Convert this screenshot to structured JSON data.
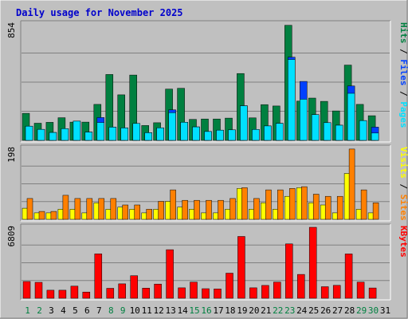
{
  "title": "Daily usage for November 2025",
  "colors": {
    "background": "#c0c0c0",
    "title": "#0000cc",
    "hits": "#008040",
    "files": "#0040ff",
    "pages": "#00e0ff",
    "visits": "#ffff00",
    "sites": "#ff8000",
    "kbytes": "#ff0000",
    "weekend_day": "#008040",
    "weekday": "#000000"
  },
  "chart_data": [
    {
      "type": "bar",
      "name": "hits-files-pages",
      "categories": [
        "1",
        "2",
        "3",
        "4",
        "5",
        "6",
        "7",
        "8",
        "9",
        "10",
        "11",
        "12",
        "13",
        "14",
        "15",
        "16",
        "17",
        "18",
        "19",
        "20",
        "21",
        "22",
        "23",
        "24",
        "25",
        "26",
        "27",
        "28",
        "29",
        "30",
        "31"
      ],
      "ymax_label": "854",
      "ylim": [
        0,
        854
      ],
      "grid": true,
      "series": [
        {
          "name": "Hits",
          "color": "#008040",
          "values": [
            198,
            126,
            132,
            166,
            134,
            134,
            264,
            483,
            334,
            479,
            109,
            129,
            376,
            382,
            154,
            157,
            157,
            163,
            490,
            165,
            262,
            252,
            844,
            288,
            310,
            286,
            216,
            552,
            264,
            181,
            0
          ]
        },
        {
          "name": "Files",
          "color": "#0040ff",
          "values": [
            104,
            81,
            58,
            86,
            141,
            61,
            167,
            97,
            91,
            124,
            56,
            92,
            224,
            133,
            99,
            65,
            75,
            77,
            254,
            80,
            106,
            125,
            610,
            432,
            189,
            130,
            111,
            399,
            145,
            97,
            0
          ]
        },
        {
          "name": "Pages",
          "color": "#00e0ff",
          "values": [
            104,
            81,
            58,
            86,
            141,
            61,
            131,
            97,
            91,
            124,
            56,
            92,
            203,
            133,
            99,
            65,
            75,
            77,
            254,
            80,
            106,
            125,
            593,
            302,
            189,
            130,
            111,
            345,
            145,
            54,
            0
          ]
        }
      ],
      "right_label": [
        "Pages",
        " / ",
        "Files",
        " / ",
        "Hits"
      ]
    },
    {
      "type": "bar",
      "name": "visits-sites",
      "categories": [
        "1",
        "2",
        "3",
        "4",
        "5",
        "6",
        "7",
        "8",
        "9",
        "10",
        "11",
        "12",
        "13",
        "14",
        "15",
        "16",
        "17",
        "18",
        "19",
        "20",
        "21",
        "22",
        "23",
        "24",
        "25",
        "26",
        "27",
        "28",
        "29",
        "30",
        "31"
      ],
      "ymax_label": "198",
      "ylim": [
        0,
        198
      ],
      "grid": true,
      "series": [
        {
          "name": "Visits",
          "color": "#ffff00",
          "values": [
            31,
            18,
            18,
            28,
            28,
            18,
            46,
            28,
            34,
            28,
            18,
            28,
            50,
            34,
            28,
            18,
            18,
            28,
            86,
            28,
            46,
            28,
            64,
            88,
            46,
            40,
            18,
            128,
            28,
            18,
            0
          ]
        },
        {
          "name": "Sites",
          "color": "#ff8000",
          "values": [
            58,
            22,
            22,
            67,
            58,
            58,
            58,
            58,
            40,
            40,
            28,
            50,
            82,
            53,
            53,
            53,
            53,
            58,
            88,
            58,
            82,
            82,
            86,
            91,
            70,
            64,
            64,
            196,
            82,
            46,
            0
          ]
        }
      ],
      "right_label": [
        "Sites",
        " / ",
        "Visits"
      ]
    },
    {
      "type": "bar",
      "name": "kbytes",
      "categories": [
        "1",
        "2",
        "3",
        "4",
        "5",
        "6",
        "7",
        "8",
        "9",
        "10",
        "11",
        "12",
        "13",
        "14",
        "15",
        "16",
        "17",
        "18",
        "19",
        "20",
        "21",
        "22",
        "23",
        "24",
        "25",
        "26",
        "27",
        "28",
        "29",
        "30",
        "31"
      ],
      "ymax_label": "6809",
      "ylim": [
        0,
        6809
      ],
      "grid": true,
      "series": [
        {
          "name": "KBytes",
          "color": "#ff0000",
          "values": [
            1603,
            1527,
            773,
            771,
            1161,
            597,
            4264,
            958,
            1388,
            2167,
            970,
            1361,
            4659,
            1000,
            1554,
            915,
            894,
            2413,
            5929,
            1002,
            1231,
            1554,
            5220,
            2290,
            6809,
            1110,
            1236,
            4255,
            1554,
            987,
            0
          ]
        }
      ],
      "right_label": [
        "KBytes"
      ]
    }
  ],
  "weekend_days": [
    "1",
    "2",
    "8",
    "9",
    "15",
    "16",
    "22",
    "23",
    "29",
    "30"
  ]
}
